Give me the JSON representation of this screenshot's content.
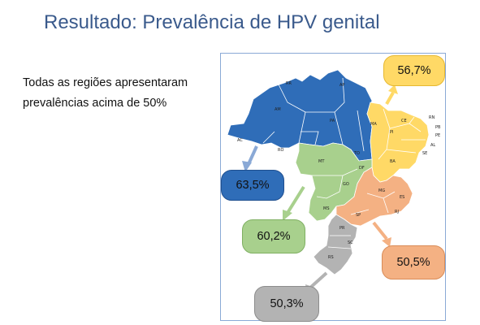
{
  "slide": {
    "title": "Resultado: Prevalência de HPV genital",
    "text": "Todas as regiões apresentaram prevalências acima de 50%"
  },
  "regions": {
    "north": {
      "value": "63,5%",
      "color": "#2f6db8"
    },
    "northeast": {
      "value": "56,7%",
      "color": "#ffd966"
    },
    "center_west": {
      "value": "60,2%",
      "color": "#a8d08d"
    },
    "southeast": {
      "value": "50,5%",
      "color": "#f4b183"
    },
    "south": {
      "value": "50,3%",
      "color": "#b3b3b3"
    }
  },
  "states": {
    "RR": "RR",
    "AP": "AP",
    "AM": "AM",
    "PA": "PA",
    "AC": "AC",
    "RO": "RO",
    "TO": "TO",
    "MA": "MA",
    "CE": "CE",
    "RN": "RN",
    "PB": "PB",
    "PE": "PE",
    "PI": "PI",
    "AL": "AL",
    "SE": "SE",
    "BA": "BA",
    "MT": "MT",
    "DF": "DF",
    "GO": "GO",
    "MS": "MS",
    "MG": "MG",
    "ES": "ES",
    "RJ": "RJ",
    "SP": "SP",
    "PR": "PR",
    "SC": "SC",
    "RS": "RS"
  }
}
